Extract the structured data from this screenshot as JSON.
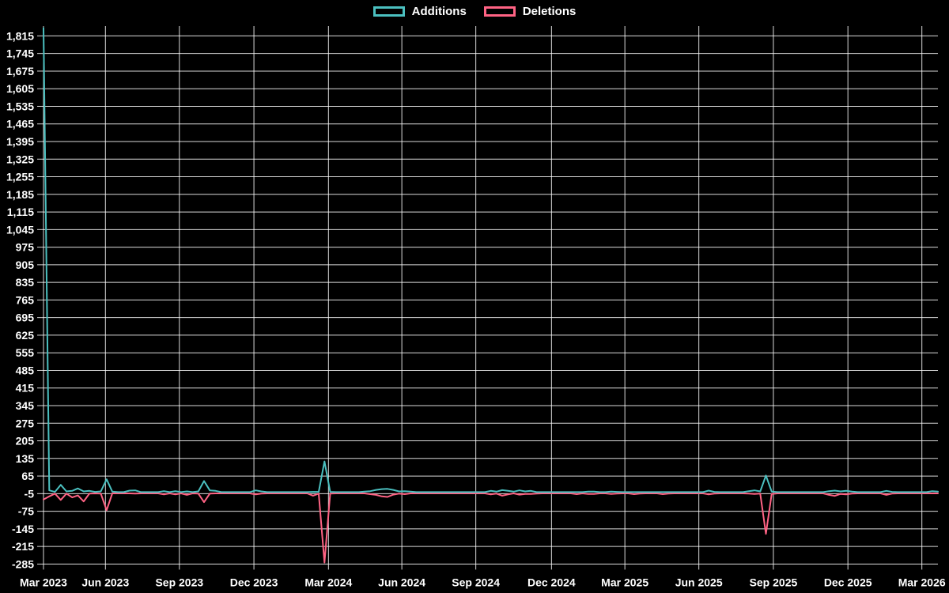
{
  "legend": {
    "items": [
      {
        "label": "Additions",
        "color": "#4bc0c0"
      },
      {
        "label": "Deletions",
        "color": "#ff6384"
      }
    ]
  },
  "chart_data": {
    "type": "line",
    "title": "",
    "xlabel": "",
    "ylabel": "",
    "background": "#000000",
    "grid": true,
    "grid_color": "rgba(255,255,255,0.85)",
    "text_color": "#ffffff",
    "legend_position": "top",
    "x_axis": {
      "tick_labels": [
        "Mar 2023",
        "Jun 2023",
        "Sep 2023",
        "Dec 2023",
        "Mar 2024",
        "Jun 2024",
        "Sep 2024",
        "Dec 2024",
        "Mar 2025",
        "Jun 2025",
        "Sep 2025",
        "Dec 2025",
        "Mar 2026"
      ],
      "tick_weeks": [
        0,
        10.8,
        23.7,
        36.7,
        49.7,
        62.5,
        75.4,
        88.6,
        101.4,
        114.3,
        127.3,
        140.3,
        153.2
      ],
      "total_weeks": 156
    },
    "y_axis": {
      "tick_labels": [
        "1,815",
        "1,745",
        "1,675",
        "1,605",
        "1,535",
        "1,465",
        "1,395",
        "1,325",
        "1,255",
        "1,185",
        "1,115",
        "1,045",
        "975",
        "905",
        "835",
        "765",
        "695",
        "625",
        "555",
        "485",
        "415",
        "345",
        "275",
        "205",
        "135",
        "65",
        "-5",
        "-75",
        "-145",
        "-215",
        "-285"
      ],
      "tick_values": [
        1815,
        1745,
        1675,
        1605,
        1535,
        1465,
        1395,
        1325,
        1255,
        1185,
        1115,
        1045,
        975,
        905,
        835,
        765,
        695,
        625,
        555,
        485,
        415,
        345,
        275,
        205,
        135,
        65,
        -5,
        -75,
        -145,
        -215,
        -285
      ],
      "min": -285,
      "max": 1854
    },
    "series": [
      {
        "name": "Additions",
        "color": "#4bc0c0",
        "weekly_values": [
          1846,
          8,
          2,
          30,
          4,
          6,
          16,
          4,
          6,
          2,
          4,
          52,
          3,
          1,
          1,
          7,
          8,
          1,
          1,
          1,
          1,
          5,
          1,
          5,
          1,
          4,
          1,
          4,
          45,
          8,
          6,
          1,
          1,
          1,
          1,
          1,
          1,
          8,
          4,
          1,
          1,
          1,
          1,
          1,
          1,
          1,
          1,
          2,
          2,
          123,
          2,
          1,
          1,
          1,
          1,
          1,
          3,
          5,
          10,
          13,
          14,
          10,
          4,
          5,
          3,
          1,
          1,
          1,
          1,
          1,
          1,
          1,
          1,
          1,
          1,
          1,
          1,
          1,
          6,
          3,
          9,
          6,
          3,
          8,
          4,
          6,
          1,
          1,
          1,
          1,
          1,
          1,
          1,
          1,
          1,
          3,
          3,
          1,
          1,
          3,
          2,
          1,
          1,
          1,
          1,
          1,
          1,
          1,
          1,
          1,
          1,
          1,
          1,
          1,
          1,
          1,
          7,
          2,
          1,
          1,
          1,
          1,
          1,
          5,
          8,
          4,
          67,
          3,
          1,
          1,
          1,
          1,
          1,
          1,
          1,
          1,
          1,
          5,
          7,
          4,
          6,
          3,
          1,
          1,
          1,
          1,
          1,
          6,
          2,
          1,
          1,
          1,
          1,
          1,
          1,
          5,
          3
        ]
      },
      {
        "name": "Deletions",
        "color": "#ff6384",
        "weekly_values": [
          -28,
          -16,
          -5,
          -30,
          -5,
          -20,
          -12,
          -36,
          -5,
          -4,
          -5,
          -71,
          -4,
          -4,
          -4,
          -4,
          -5,
          -4,
          -4,
          -4,
          -4,
          -8,
          -4,
          -8,
          -4,
          -10,
          -4,
          -5,
          -39,
          -5,
          -4,
          -4,
          -4,
          -4,
          -4,
          -4,
          -4,
          -8,
          -5,
          -4,
          -4,
          -4,
          -4,
          -4,
          -4,
          -4,
          -4,
          -13,
          -5,
          -279,
          -5,
          -4,
          -4,
          -4,
          -4,
          -4,
          -4,
          -7,
          -10,
          -16,
          -18,
          -9,
          -5,
          -7,
          -4,
          -4,
          -4,
          -4,
          -4,
          -4,
          -4,
          -4,
          -4,
          -4,
          -4,
          -4,
          -4,
          -4,
          -8,
          -5,
          -13,
          -8,
          -4,
          -9,
          -6,
          -6,
          -5,
          -4,
          -4,
          -4,
          -4,
          -4,
          -4,
          -7,
          -4,
          -6,
          -6,
          -4,
          -4,
          -6,
          -5,
          -4,
          -4,
          -7,
          -5,
          -4,
          -4,
          -4,
          -7,
          -5,
          -4,
          -4,
          -4,
          -4,
          -4,
          -4,
          -8,
          -5,
          -4,
          -4,
          -4,
          -4,
          -4,
          -5,
          -6,
          -5,
          -165,
          -6,
          -4,
          -4,
          -4,
          -4,
          -4,
          -4,
          -4,
          -4,
          -4,
          -10,
          -14,
          -6,
          -8,
          -5,
          -4,
          -4,
          -4,
          -4,
          -4,
          -10,
          -5,
          -4,
          -4,
          -4,
          -4,
          -4,
          -4,
          -4,
          -4
        ]
      }
    ]
  }
}
